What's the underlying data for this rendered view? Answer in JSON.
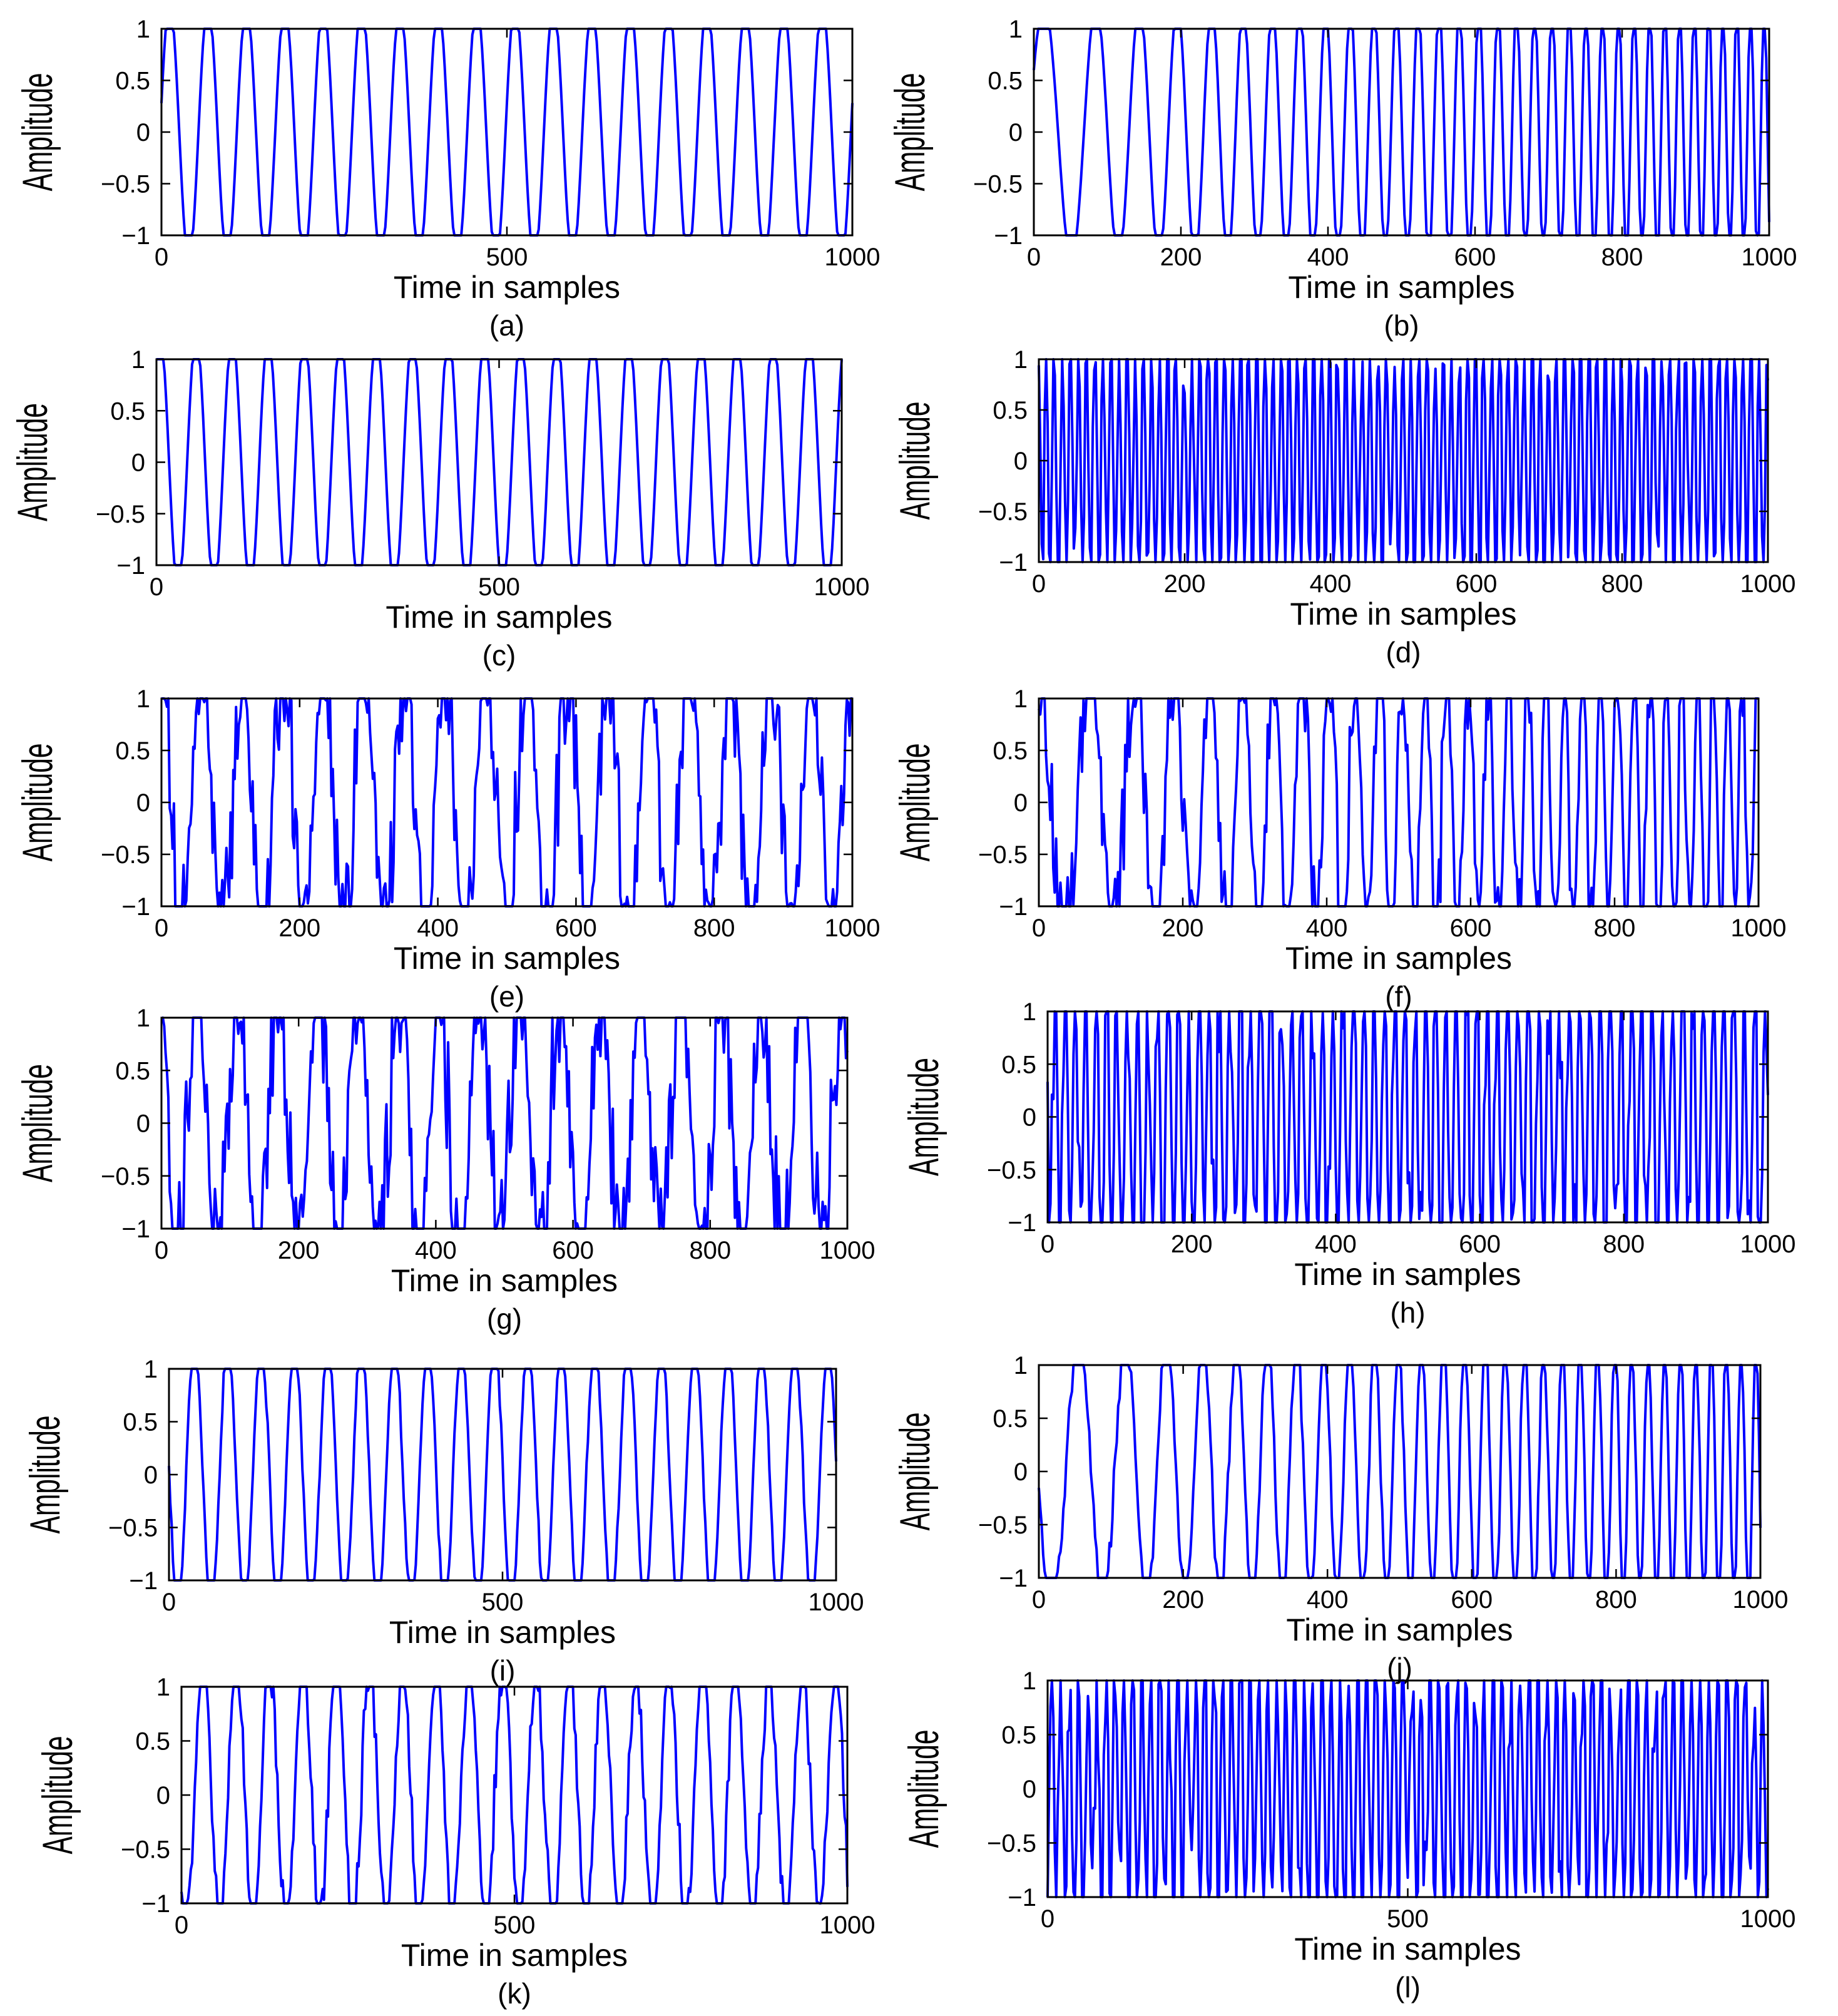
{
  "figure": {
    "line_color": "#0000ff"
  },
  "chart_data": [
    {
      "id": "a",
      "type": "line",
      "caption": "(a)",
      "xlabel": "Time in samples",
      "ylabel": "Amplitude",
      "xlim": [
        0,
        1000
      ],
      "ylim": [
        -1,
        1
      ],
      "xticks": [
        0,
        500,
        1000
      ],
      "xtick_labels": [
        "0",
        "500",
        "1000"
      ],
      "yticks": [
        1,
        0.5,
        0,
        -0.5,
        -1
      ],
      "ytick_labels": [
        "1",
        "0.5",
        "0",
        "−0.5",
        "−1"
      ],
      "signal": {
        "kind": "clipped-chirp",
        "cycles_start": 18,
        "cycles_end": 18,
        "gain": 1.25,
        "noise": 0
      }
    },
    {
      "id": "b",
      "type": "line",
      "caption": "(b)",
      "xlabel": "Time in samples",
      "ylabel": "Amplitude",
      "xlim": [
        0,
        1000
      ],
      "ylim": [
        -1,
        1
      ],
      "xticks": [
        0,
        200,
        400,
        600,
        800,
        1000
      ],
      "xtick_labels": [
        "0",
        "200",
        "400",
        "600",
        "800",
        "1000"
      ],
      "yticks": [
        1,
        0.5,
        0,
        -0.5,
        -1
      ],
      "ytick_labels": [
        "1",
        "0.5",
        "0",
        "−0.5",
        "−1"
      ],
      "signal": {
        "kind": "clipped-chirp",
        "cycles_start": 12,
        "cycles_end": 55,
        "gain": 1.25,
        "noise": 0
      }
    },
    {
      "id": "c",
      "type": "line",
      "caption": "(c)",
      "xlabel": "Time in samples",
      "ylabel": "Amplitude",
      "xlim": [
        0,
        1000
      ],
      "ylim": [
        -1,
        1
      ],
      "xticks": [
        0,
        500,
        1000
      ],
      "xtick_labels": [
        "0",
        "500",
        "1000"
      ],
      "yticks": [
        1,
        0.5,
        0,
        -0.5,
        -1
      ],
      "ytick_labels": [
        "1",
        "0.5",
        "0",
        "−0.5",
        "−1"
      ],
      "signal": {
        "kind": "clipped-chirp",
        "cycles_start": 19,
        "cycles_end": 19,
        "gain": 1.25,
        "noise": 0
      }
    },
    {
      "id": "d",
      "type": "line",
      "caption": "(d)",
      "xlabel": "Time in samples",
      "ylabel": "Amplitude",
      "xlim": [
        0,
        1000
      ],
      "ylim": [
        -1,
        1
      ],
      "xticks": [
        0,
        200,
        400,
        600,
        800,
        1000
      ],
      "xtick_labels": [
        "0",
        "200",
        "400",
        "600",
        "800",
        "1000"
      ],
      "yticks": [
        1,
        0.5,
        0,
        -0.5,
        -1
      ],
      "ytick_labels": [
        "1",
        "0.5",
        "0",
        "−0.5",
        "−1"
      ],
      "signal": {
        "kind": "clipped-chirp",
        "cycles_start": 90,
        "cycles_end": 90,
        "gain": 1.25,
        "noise": 0.3
      }
    },
    {
      "id": "e",
      "type": "line",
      "caption": "(e)",
      "xlabel": "Time in samples",
      "ylabel": "Amplitude",
      "xlim": [
        0,
        1000
      ],
      "ylim": [
        -1,
        1
      ],
      "xticks": [
        0,
        200,
        400,
        600,
        800,
        1000
      ],
      "xtick_labels": [
        "0",
        "200",
        "400",
        "600",
        "800",
        "1000"
      ],
      "yticks": [
        1,
        0.5,
        0,
        -0.5,
        -1
      ],
      "ytick_labels": [
        "1",
        "0.5",
        "0",
        "−0.5",
        "−1"
      ],
      "signal": {
        "kind": "clipped-chirp",
        "cycles_start": 17,
        "cycles_end": 17,
        "gain": 1.3,
        "noise": 0.45
      }
    },
    {
      "id": "f",
      "type": "line",
      "caption": "(f)",
      "xlabel": "Time in samples",
      "ylabel": "Amplitude",
      "xlim": [
        0,
        1000
      ],
      "ylim": [
        -1,
        1
      ],
      "xticks": [
        0,
        200,
        400,
        600,
        800,
        1000
      ],
      "xtick_labels": [
        "0",
        "200",
        "400",
        "600",
        "800",
        "1000"
      ],
      "yticks": [
        1,
        0.5,
        0,
        -0.5,
        -1
      ],
      "ytick_labels": [
        "1",
        "0.5",
        "0",
        "−0.5",
        "−1"
      ],
      "signal": {
        "kind": "clipped-chirp",
        "cycles_start": 12,
        "cycles_end": 50,
        "gain": 1.3,
        "noise": 0.4
      }
    },
    {
      "id": "g",
      "type": "line",
      "caption": "(g)",
      "xlabel": "Time in samples",
      "ylabel": "Amplitude",
      "xlim": [
        0,
        1000
      ],
      "ylim": [
        -1,
        1
      ],
      "xticks": [
        0,
        200,
        400,
        600,
        800,
        1000
      ],
      "xtick_labels": [
        "0",
        "200",
        "400",
        "600",
        "800",
        "1000"
      ],
      "yticks": [
        1,
        0.5,
        0,
        -0.5,
        -1
      ],
      "ytick_labels": [
        "1",
        "0.5",
        "0",
        "−0.5",
        "−1"
      ],
      "signal": {
        "kind": "clipped-chirp",
        "cycles_start": 17,
        "cycles_end": 17,
        "gain": 1.3,
        "noise": 0.5
      }
    },
    {
      "id": "h",
      "type": "line",
      "caption": "(h)",
      "xlabel": "Time in samples",
      "ylabel": "Amplitude",
      "xlim": [
        0,
        1000
      ],
      "ylim": [
        -1,
        1
      ],
      "xticks": [
        0,
        200,
        400,
        600,
        800,
        1000
      ],
      "xtick_labels": [
        "0",
        "200",
        "400",
        "600",
        "800",
        "1000"
      ],
      "yticks": [
        1,
        0.5,
        0,
        -0.5,
        -1
      ],
      "ytick_labels": [
        "1",
        "0.5",
        "0",
        "−0.5",
        "−1"
      ],
      "signal": {
        "kind": "clipped-chirp",
        "cycles_start": 70,
        "cycles_end": 70,
        "gain": 1.3,
        "noise": 0.5
      }
    },
    {
      "id": "i",
      "type": "line",
      "caption": "(i)",
      "xlabel": "Time in samples",
      "ylabel": "Amplitude",
      "xlim": [
        0,
        1000
      ],
      "ylim": [
        -1,
        1
      ],
      "xticks": [
        0,
        500,
        1000
      ],
      "xtick_labels": [
        "0",
        "500",
        "1000"
      ],
      "yticks": [
        1,
        0.5,
        0,
        -0.5,
        -1
      ],
      "ytick_labels": [
        "1",
        "0.5",
        "0",
        "−0.5",
        "−1"
      ],
      "signal": {
        "kind": "clipped-chirp",
        "cycles_start": 20,
        "cycles_end": 20,
        "gain": 1.25,
        "noise": 0.05
      }
    },
    {
      "id": "j",
      "type": "line",
      "caption": "(j)",
      "xlabel": "Time in samples",
      "ylabel": "Amplitude",
      "xlim": [
        0,
        1000
      ],
      "ylim": [
        -1,
        1
      ],
      "xticks": [
        0,
        200,
        400,
        600,
        800,
        1000
      ],
      "xtick_labels": [
        "0",
        "200",
        "400",
        "600",
        "800",
        "1000"
      ],
      "yticks": [
        1,
        0.5,
        0,
        -0.5,
        -1
      ],
      "ytick_labels": [
        "1",
        "0.5",
        "0",
        "−0.5",
        "−1"
      ],
      "signal": {
        "kind": "clipped-chirp",
        "cycles_start": 12,
        "cycles_end": 50,
        "gain": 1.25,
        "noise": 0.1
      }
    },
    {
      "id": "k",
      "type": "line",
      "caption": "(k)",
      "xlabel": "Time in samples",
      "ylabel": "Amplitude",
      "xlim": [
        0,
        1000
      ],
      "ylim": [
        -1,
        1
      ],
      "xticks": [
        0,
        500,
        1000
      ],
      "xtick_labels": [
        "0",
        "500",
        "1000"
      ],
      "yticks": [
        1,
        0.5,
        0,
        -0.5,
        -1
      ],
      "ytick_labels": [
        "1",
        "0.5",
        "0",
        "−0.5",
        "−1"
      ],
      "signal": {
        "kind": "clipped-chirp",
        "cycles_start": 20,
        "cycles_end": 20,
        "gain": 1.2,
        "noise": 0.15
      }
    },
    {
      "id": "l",
      "type": "line",
      "caption": "(l)",
      "xlabel": "Time in samples",
      "ylabel": "Amplitude",
      "xlim": [
        0,
        1000
      ],
      "ylim": [
        -1,
        1
      ],
      "xticks": [
        0,
        500,
        1000
      ],
      "xtick_labels": [
        "0",
        "500",
        "1000"
      ],
      "yticks": [
        1,
        0.5,
        0,
        -0.5,
        -1
      ],
      "ytick_labels": [
        "1",
        "0.5",
        "0",
        "−0.5",
        "−1"
      ],
      "signal": {
        "kind": "clipped-chirp",
        "cycles_start": 80,
        "cycles_end": 80,
        "gain": 1.2,
        "noise": 0.45
      }
    }
  ]
}
